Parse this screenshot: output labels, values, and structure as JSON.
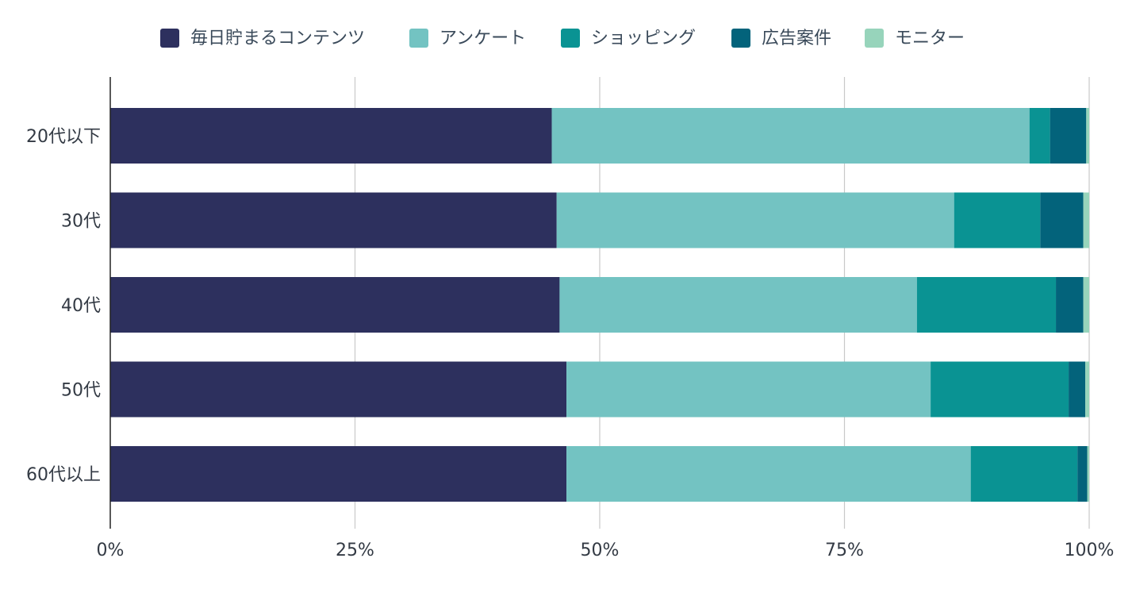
{
  "chart_data": {
    "type": "bar",
    "orientation": "horizontal",
    "stacked": "percent",
    "categories": [
      "20代以下",
      "30代",
      "40代",
      "50代",
      "60代以上"
    ],
    "series": [
      {
        "name": "毎日貯まるコンテンツ",
        "color": "#2d305e",
        "values": [
          45.1,
          45.6,
          45.9,
          46.6,
          46.6
        ]
      },
      {
        "name": "アンケート",
        "color": "#73c3c2",
        "values": [
          48.8,
          40.6,
          36.5,
          37.2,
          41.3
        ]
      },
      {
        "name": "ショッピング",
        "color": "#0a9393",
        "values": [
          2.1,
          8.8,
          14.2,
          14.1,
          10.9
        ]
      },
      {
        "name": "広告案件",
        "color": "#03637b",
        "values": [
          3.7,
          4.4,
          2.8,
          1.7,
          1.0
        ]
      },
      {
        "name": "モニター",
        "color": "#97d4bb",
        "values": [
          0.3,
          0.6,
          0.6,
          0.4,
          0.2
        ]
      }
    ],
    "x_ticks": [
      "0%",
      "25%",
      "50%",
      "75%",
      "100%"
    ],
    "xlim": [
      0,
      100
    ],
    "grid": true,
    "legend_position": "top-center"
  }
}
